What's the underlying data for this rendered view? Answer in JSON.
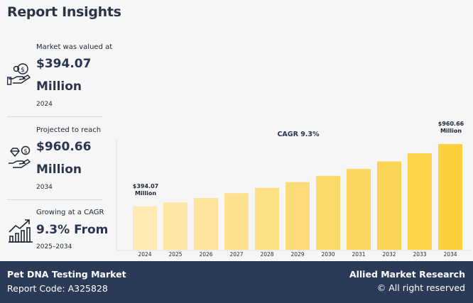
{
  "title": "Report Insights",
  "stats": [
    {
      "label": "Market was valued at",
      "value_line1": "$394.07",
      "value_line2": "Million",
      "sub": "2024",
      "icon": "money-hand-icon"
    },
    {
      "label": "Projected to reach",
      "value_line1": "$960.66",
      "value_line2": "Million",
      "sub": "2034",
      "icon": "diamond-coin-hand-icon"
    },
    {
      "label": "Growing at a CAGR",
      "value_line1": "9.3% From",
      "sub": "2025–2034",
      "icon": "growth-chart-icon"
    }
  ],
  "chart_data": {
    "type": "bar",
    "categories": [
      "2024",
      "2025",
      "2026",
      "2027",
      "2028",
      "2029",
      "2030",
      "2031",
      "2032",
      "2033",
      "2034"
    ],
    "values": [
      394.07,
      430.7,
      470.8,
      514.5,
      562.4,
      614.7,
      671.8,
      734.3,
      802.6,
      877.2,
      960.66
    ],
    "annotations": {
      "cagr": "CAGR 9.3%",
      "first_label": [
        "$394.07",
        "Million"
      ],
      "last_label": [
        "$960.66",
        "Million"
      ]
    },
    "ylim": [
      0,
      960.66
    ],
    "grid": false,
    "colors": {
      "start": "#fde9b1",
      "end": "#fccf3d"
    }
  },
  "footer": {
    "market": "Pet DNA Testing Market",
    "report_code": "Report Code: A325828",
    "brand": "Allied Market Research",
    "rights": "© All right reserved"
  }
}
